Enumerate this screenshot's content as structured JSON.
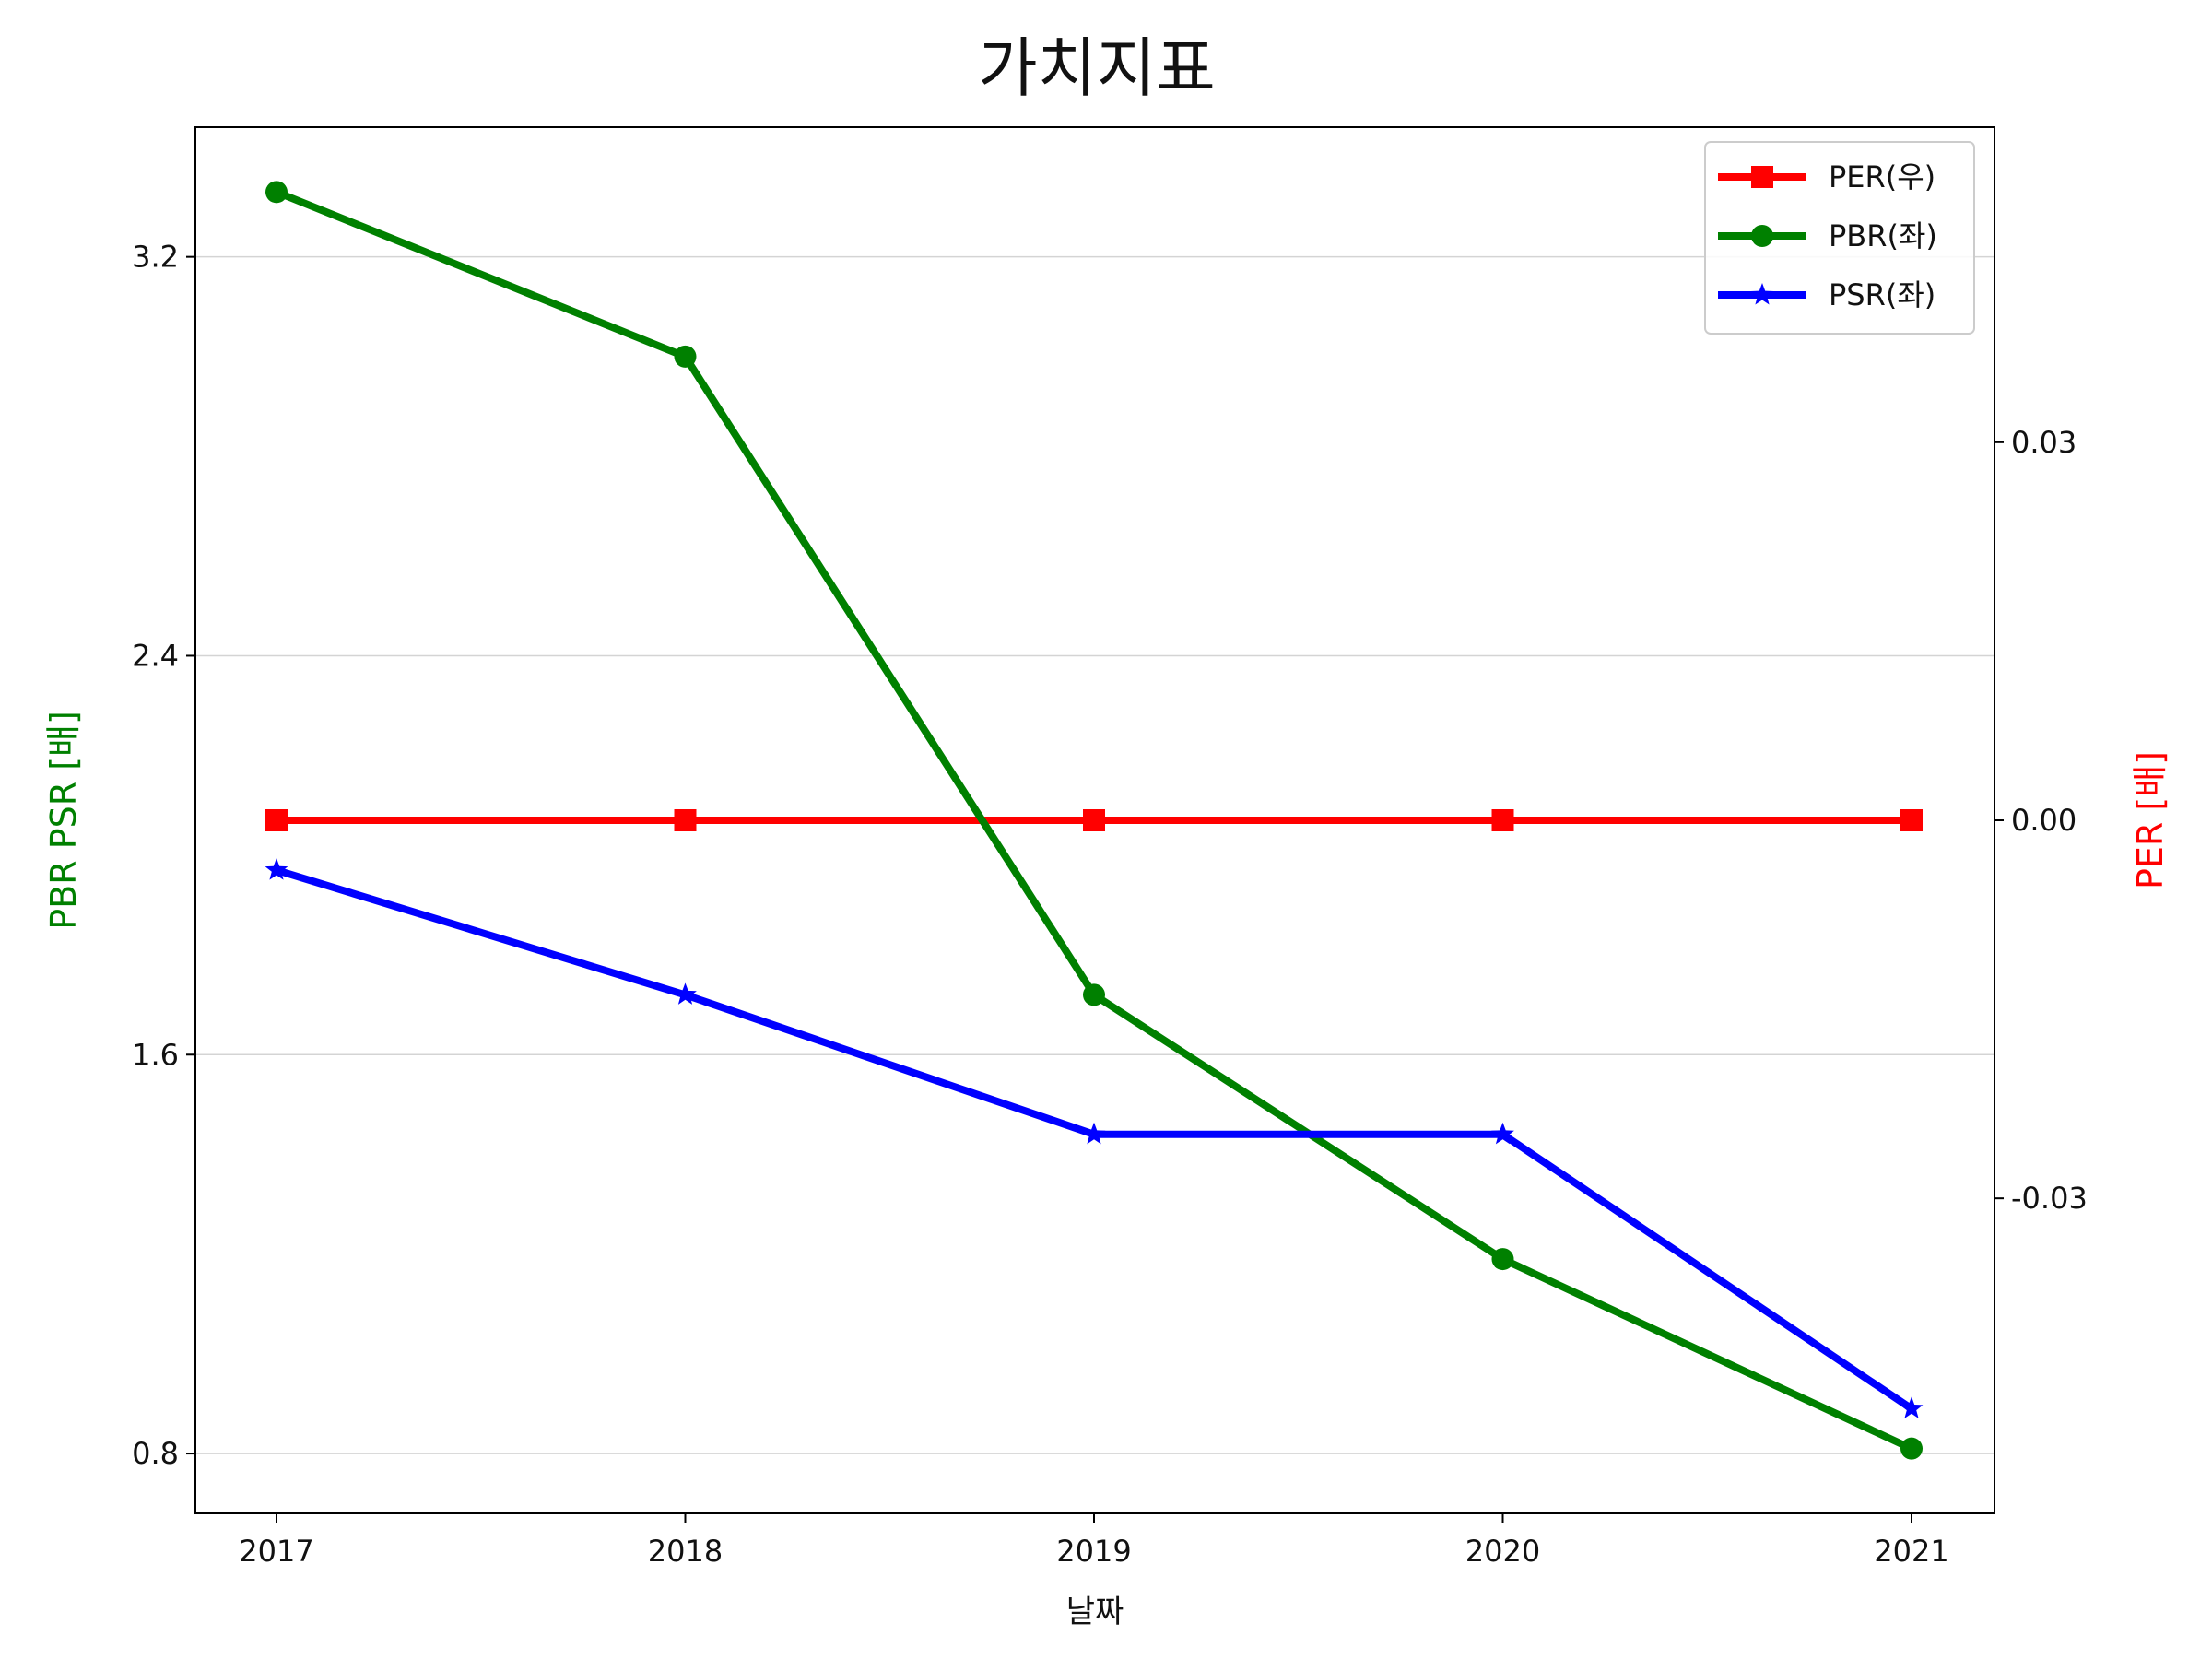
{
  "chart_data": {
    "type": "line",
    "title": "가치지표",
    "xlabel": "날짜",
    "ylabel_left": "PBR PSR [배]",
    "ylabel_right": "PER [배]",
    "categories": [
      "2017",
      "2018",
      "2019",
      "2020",
      "2021"
    ],
    "x_tick_labels": [
      "2017",
      "2018",
      "2019",
      "2020",
      "2021"
    ],
    "y_left": {
      "range": [
        0.68,
        3.46
      ],
      "ticks": [
        0.8,
        1.6,
        2.4,
        3.2
      ],
      "tick_labels": [
        "0.8",
        "1.6",
        "2.4",
        "3.2"
      ]
    },
    "y_right": {
      "range": [
        -0.055,
        0.055
      ],
      "ticks": [
        -0.03,
        0.0,
        0.03
      ],
      "tick_labels": [
        "-0.03",
        "0.00",
        "0.03"
      ]
    },
    "grid": "horizontal",
    "legend_position": "top-right",
    "series": [
      {
        "name": "PER(우)",
        "axis": "right",
        "color": "#ff0000",
        "marker": "square",
        "values": [
          0,
          0,
          0,
          0,
          0
        ]
      },
      {
        "name": "PBR(좌)",
        "axis": "left",
        "color": "#008000",
        "marker": "circle",
        "values": [
          3.33,
          3.0,
          1.72,
          1.19,
          0.81
        ]
      },
      {
        "name": "PSR(좌)",
        "axis": "left",
        "color": "#0000ff",
        "marker": "star",
        "values": [
          1.97,
          1.72,
          1.44,
          1.44,
          0.89
        ]
      }
    ]
  }
}
